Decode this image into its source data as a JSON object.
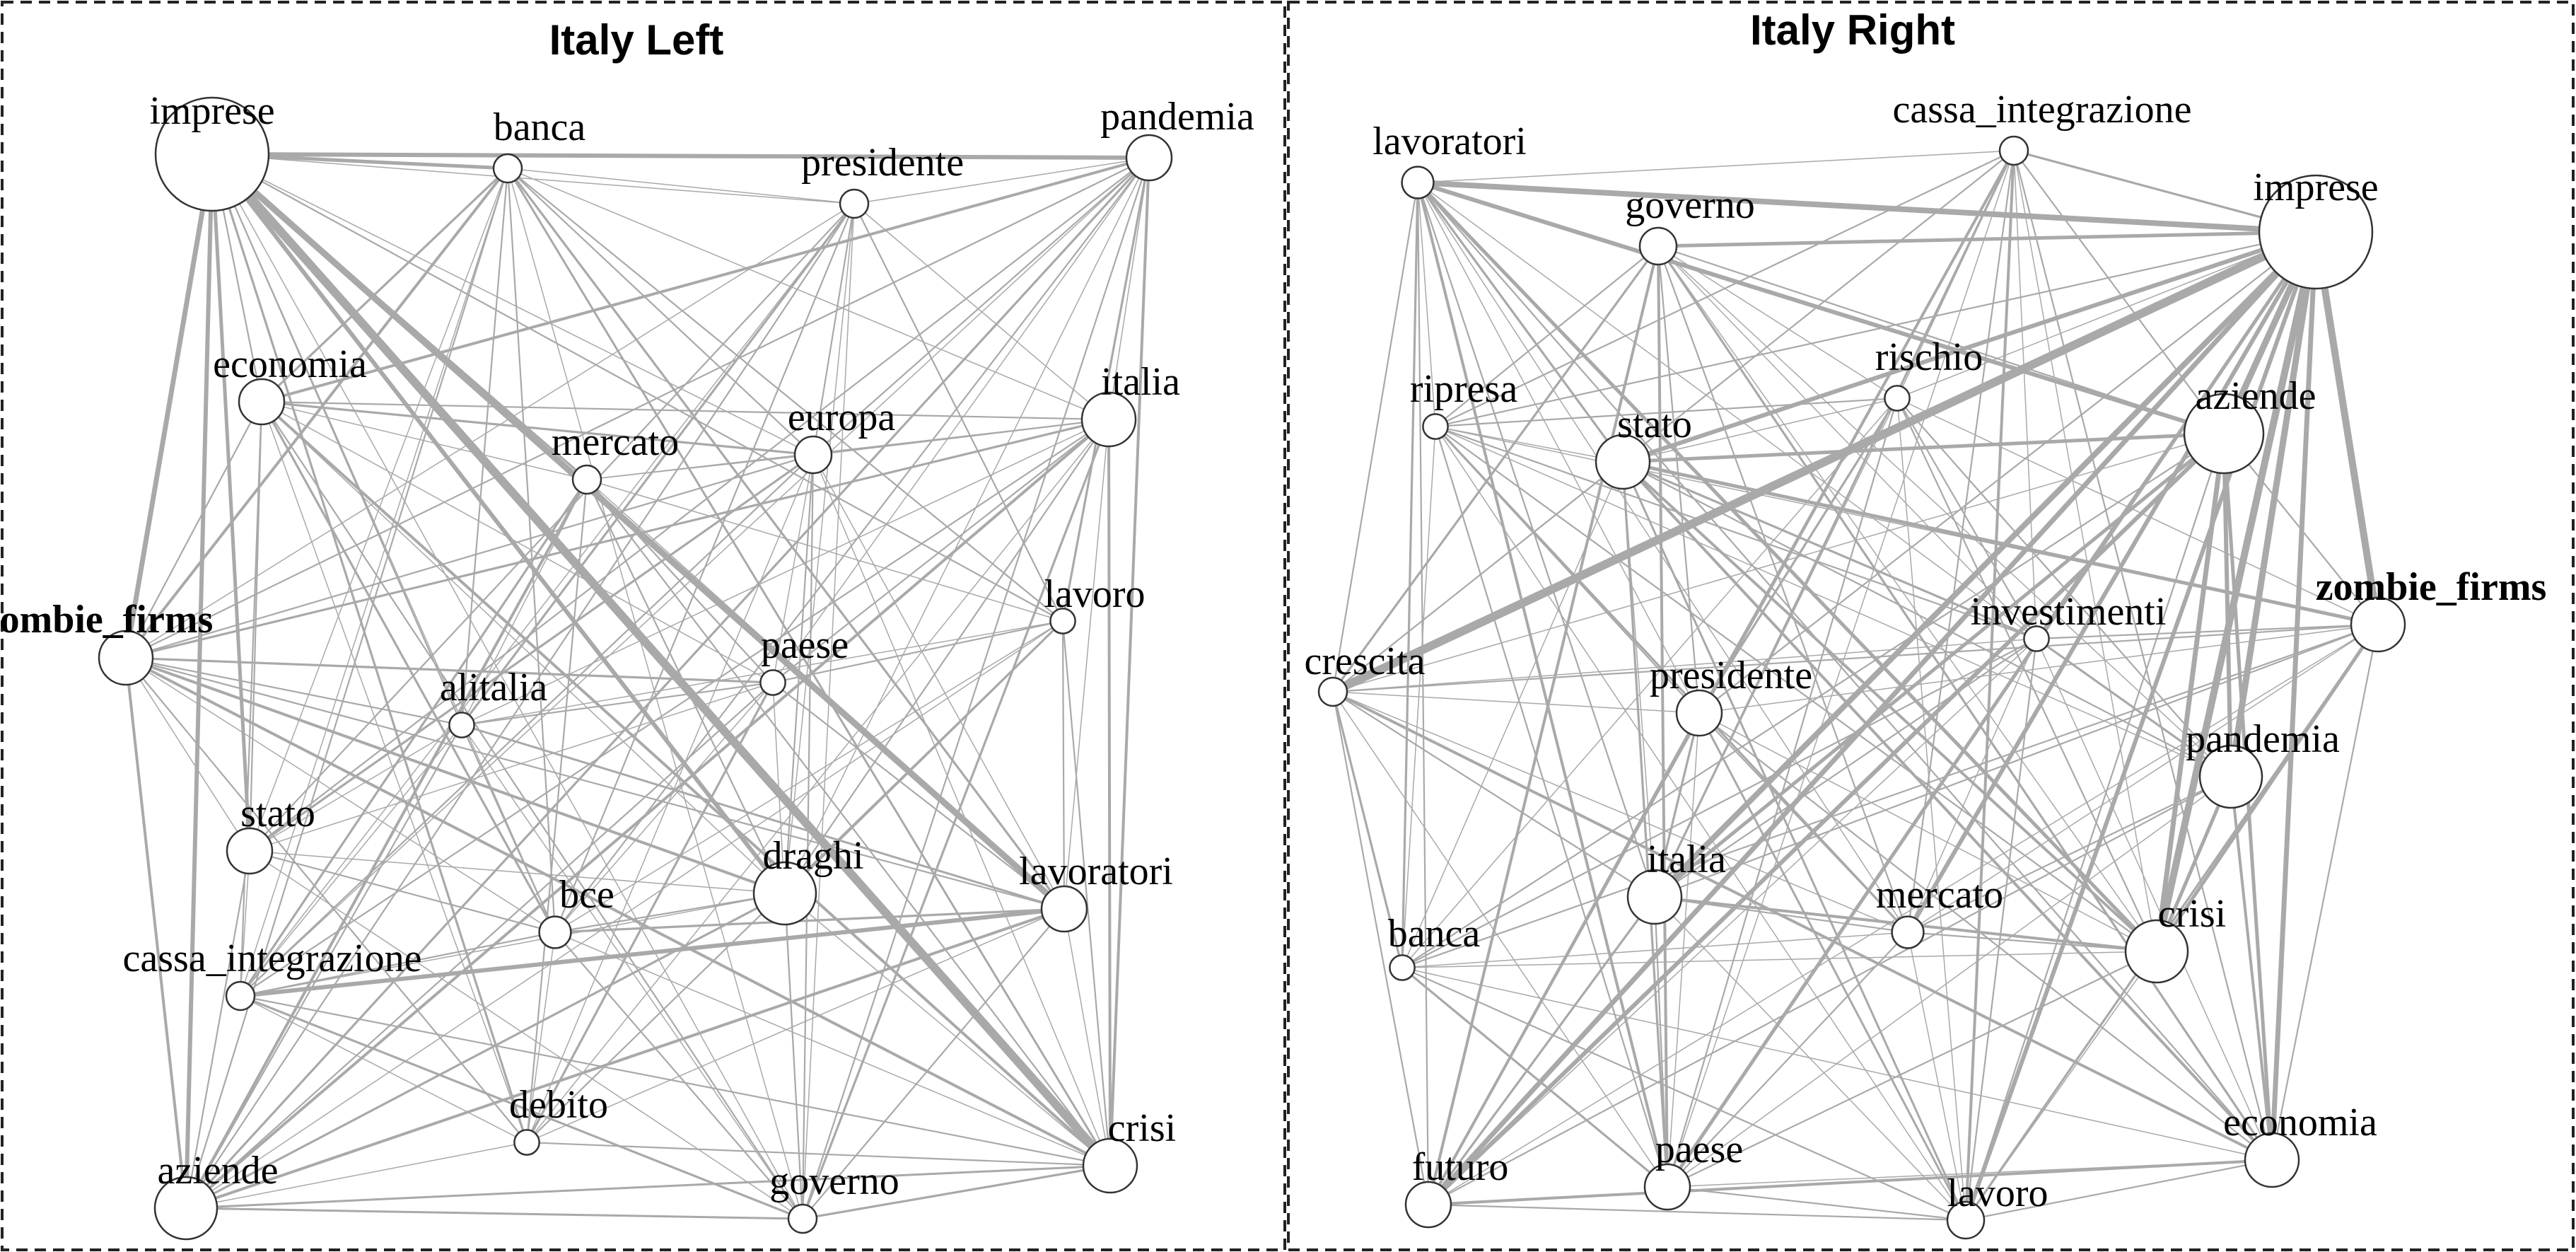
{
  "panels": [
    {
      "title": "Italy Left",
      "nodes": [
        {
          "id": "imprese",
          "label": "imprese",
          "size": 6,
          "bold": false
        },
        {
          "id": "banca",
          "label": "banca",
          "size": 1,
          "bold": false
        },
        {
          "id": "presidente",
          "label": "presidente",
          "size": 1,
          "bold": false
        },
        {
          "id": "pandemia",
          "label": "pandemia",
          "size": 2,
          "bold": false
        },
        {
          "id": "economia",
          "label": "economia",
          "size": 2,
          "bold": false
        },
        {
          "id": "europa",
          "label": "europa",
          "size": 1.5,
          "bold": false
        },
        {
          "id": "italia",
          "label": "italia",
          "size": 2.5,
          "bold": false
        },
        {
          "id": "mercato",
          "label": "mercato",
          "size": 1,
          "bold": false
        },
        {
          "id": "lavoro",
          "label": "lavoro",
          "size": 0.8,
          "bold": false
        },
        {
          "id": "zombie_firms",
          "label": "zombie_firms",
          "size": 2.5,
          "bold": true
        },
        {
          "id": "paese",
          "label": "paese",
          "size": 0.8,
          "bold": false
        },
        {
          "id": "alitalia",
          "label": "alitalia",
          "size": 0.8,
          "bold": false
        },
        {
          "id": "stato",
          "label": "stato",
          "size": 2,
          "bold": false
        },
        {
          "id": "draghi",
          "label": "draghi",
          "size": 3,
          "bold": false
        },
        {
          "id": "lavoratori",
          "label": "lavoratori",
          "size": 2,
          "bold": false
        },
        {
          "id": "bce",
          "label": "bce",
          "size": 1.2,
          "bold": false
        },
        {
          "id": "cassa_integrazione",
          "label": "cassa_integrazione",
          "size": 1,
          "bold": false
        },
        {
          "id": "debito",
          "label": "debito",
          "size": 0.8,
          "bold": false
        },
        {
          "id": "aziende",
          "label": "aziende",
          "size": 3,
          "bold": false
        },
        {
          "id": "governo",
          "label": "governo",
          "size": 1,
          "bold": false
        },
        {
          "id": "crisi",
          "label": "crisi",
          "size": 2.5,
          "bold": false
        }
      ]
    },
    {
      "title": "Italy Right",
      "nodes": [
        {
          "id": "lavoratori",
          "label": "lavoratori",
          "size": 1.2,
          "bold": false
        },
        {
          "id": "cassa_integrazione",
          "label": "cassa_integrazione",
          "size": 1,
          "bold": false
        },
        {
          "id": "governo",
          "label": "governo",
          "size": 1.5,
          "bold": false
        },
        {
          "id": "imprese",
          "label": "imprese",
          "size": 6,
          "bold": false
        },
        {
          "id": "ripresa",
          "label": "ripresa",
          "size": 0.8,
          "bold": false
        },
        {
          "id": "rischio",
          "label": "rischio",
          "size": 0.8,
          "bold": false
        },
        {
          "id": "stato",
          "label": "stato",
          "size": 2.5,
          "bold": false
        },
        {
          "id": "aziende",
          "label": "aziende",
          "size": 4,
          "bold": false
        },
        {
          "id": "investimenti",
          "label": "investimenti",
          "size": 0.8,
          "bold": false
        },
        {
          "id": "zombie_firms",
          "label": "zombie_firms",
          "size": 2.5,
          "bold": true
        },
        {
          "id": "crescita",
          "label": "crescita",
          "size": 1,
          "bold": false
        },
        {
          "id": "presidente",
          "label": "presidente",
          "size": 2,
          "bold": false
        },
        {
          "id": "pandemia",
          "label": "pandemia",
          "size": 3,
          "bold": false
        },
        {
          "id": "italia",
          "label": "italia",
          "size": 2.5,
          "bold": false
        },
        {
          "id": "mercato",
          "label": "mercato",
          "size": 1.2,
          "bold": false
        },
        {
          "id": "crisi",
          "label": "crisi",
          "size": 3,
          "bold": false
        },
        {
          "id": "banca",
          "label": "banca",
          "size": 0.8,
          "bold": false
        },
        {
          "id": "futuro",
          "label": "futuro",
          "size": 2,
          "bold": false
        },
        {
          "id": "paese",
          "label": "paese",
          "size": 2,
          "bold": false
        },
        {
          "id": "lavoro",
          "label": "lavoro",
          "size": 1.5,
          "bold": false
        },
        {
          "id": "economia",
          "label": "economia",
          "size": 2.5,
          "bold": false
        }
      ]
    }
  ]
}
